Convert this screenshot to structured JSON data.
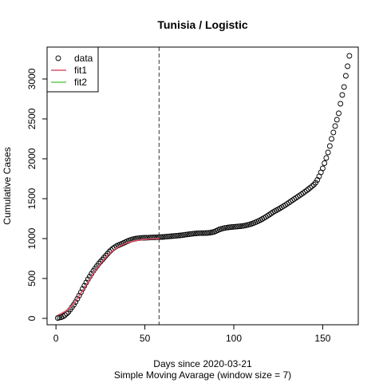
{
  "chart_data": {
    "type": "scatter",
    "title": "Tunisia / Logistic",
    "xlabel": "Days since 2020-03-21",
    "xlabel2": "Simple Moving Avarage (window size = 7)",
    "ylabel": "Cumulative Cases",
    "xlim": [
      -5,
      170
    ],
    "ylim": [
      -80,
      3400
    ],
    "xticks": [
      0,
      50,
      100,
      150
    ],
    "yticks": [
      0,
      500,
      1000,
      1500,
      2000,
      2500,
      3000
    ],
    "vline_x": 58,
    "vline_style": "dashed",
    "legend": {
      "position": "top-left",
      "entries": [
        {
          "label": "data",
          "kind": "circle",
          "color": "#000000"
        },
        {
          "label": "fit1",
          "kind": "line",
          "color": "#DF536B"
        },
        {
          "label": "fit2",
          "kind": "line",
          "color": "#61D04F"
        }
      ]
    },
    "series": [
      {
        "name": "data",
        "kind": "points",
        "color": "#000000",
        "points": [
          [
            1,
            5
          ],
          [
            2,
            10
          ],
          [
            3,
            15
          ],
          [
            4,
            25
          ],
          [
            5,
            40
          ],
          [
            6,
            60
          ],
          [
            7,
            80
          ],
          [
            8,
            110
          ],
          [
            9,
            140
          ],
          [
            10,
            170
          ],
          [
            11,
            205
          ],
          [
            12,
            245
          ],
          [
            13,
            285
          ],
          [
            14,
            325
          ],
          [
            15,
            370
          ],
          [
            16,
            410
          ],
          [
            17,
            450
          ],
          [
            18,
            490
          ],
          [
            19,
            525
          ],
          [
            20,
            560
          ],
          [
            21,
            595
          ],
          [
            22,
            625
          ],
          [
            23,
            655
          ],
          [
            24,
            685
          ],
          [
            25,
            710
          ],
          [
            26,
            735
          ],
          [
            27,
            760
          ],
          [
            28,
            785
          ],
          [
            29,
            810
          ],
          [
            30,
            835
          ],
          [
            31,
            855
          ],
          [
            32,
            875
          ],
          [
            33,
            890
          ],
          [
            34,
            905
          ],
          [
            35,
            915
          ],
          [
            36,
            925
          ],
          [
            37,
            935
          ],
          [
            38,
            945
          ],
          [
            39,
            955
          ],
          [
            40,
            965
          ],
          [
            41,
            975
          ],
          [
            42,
            983
          ],
          [
            43,
            990
          ],
          [
            44,
            995
          ],
          [
            45,
            1000
          ],
          [
            46,
            1003
          ],
          [
            47,
            1006
          ],
          [
            48,
            1008
          ],
          [
            49,
            1009
          ],
          [
            50,
            1010
          ],
          [
            51,
            1011
          ],
          [
            52,
            1012
          ],
          [
            53,
            1013
          ],
          [
            54,
            1014
          ],
          [
            55,
            1015
          ],
          [
            56,
            1016
          ],
          [
            57,
            1017
          ],
          [
            58,
            1018
          ],
          [
            59,
            1019
          ],
          [
            60,
            1020
          ],
          [
            61,
            1022
          ],
          [
            62,
            1024
          ],
          [
            63,
            1026
          ],
          [
            64,
            1028
          ],
          [
            65,
            1030
          ],
          [
            66,
            1032
          ],
          [
            67,
            1034
          ],
          [
            68,
            1036
          ],
          [
            69,
            1038
          ],
          [
            70,
            1040
          ],
          [
            71,
            1043
          ],
          [
            72,
            1046
          ],
          [
            73,
            1049
          ],
          [
            74,
            1052
          ],
          [
            75,
            1055
          ],
          [
            76,
            1058
          ],
          [
            77,
            1061
          ],
          [
            78,
            1063
          ],
          [
            79,
            1065
          ],
          [
            80,
            1067
          ],
          [
            81,
            1068
          ],
          [
            82,
            1068
          ],
          [
            83,
            1068
          ],
          [
            84,
            1069
          ],
          [
            85,
            1070
          ],
          [
            86,
            1072
          ],
          [
            87,
            1075
          ],
          [
            88,
            1080
          ],
          [
            89,
            1085
          ],
          [
            90,
            1095
          ],
          [
            91,
            1105
          ],
          [
            92,
            1115
          ],
          [
            93,
            1122
          ],
          [
            94,
            1128
          ],
          [
            95,
            1133
          ],
          [
            96,
            1137
          ],
          [
            97,
            1140
          ],
          [
            98,
            1143
          ],
          [
            99,
            1145
          ],
          [
            100,
            1147
          ],
          [
            101,
            1149
          ],
          [
            102,
            1151
          ],
          [
            103,
            1153
          ],
          [
            104,
            1155
          ],
          [
            105,
            1158
          ],
          [
            106,
            1162
          ],
          [
            107,
            1167
          ],
          [
            108,
            1172
          ],
          [
            109,
            1178
          ],
          [
            110,
            1185
          ],
          [
            111,
            1193
          ],
          [
            112,
            1202
          ],
          [
            113,
            1212
          ],
          [
            114,
            1222
          ],
          [
            115,
            1233
          ],
          [
            116,
            1245
          ],
          [
            117,
            1258
          ],
          [
            118,
            1272
          ],
          [
            119,
            1286
          ],
          [
            120,
            1300
          ],
          [
            121,
            1315
          ],
          [
            122,
            1330
          ],
          [
            123,
            1343
          ],
          [
            124,
            1355
          ],
          [
            125,
            1367
          ],
          [
            126,
            1380
          ],
          [
            127,
            1393
          ],
          [
            128,
            1407
          ],
          [
            129,
            1421
          ],
          [
            130,
            1436
          ],
          [
            131,
            1451
          ],
          [
            132,
            1466
          ],
          [
            133,
            1481
          ],
          [
            134,
            1496
          ],
          [
            135,
            1511
          ],
          [
            136,
            1526
          ],
          [
            137,
            1541
          ],
          [
            138,
            1556
          ],
          [
            139,
            1571
          ],
          [
            140,
            1587
          ],
          [
            141,
            1603
          ],
          [
            142,
            1620
          ],
          [
            143,
            1638
          ],
          [
            144,
            1656
          ],
          [
            145,
            1675
          ],
          [
            146,
            1700
          ],
          [
            147,
            1735
          ],
          [
            148,
            1780
          ],
          [
            149,
            1830
          ],
          [
            150,
            1880
          ],
          [
            151,
            1945
          ],
          [
            152,
            2010
          ],
          [
            153,
            2080
          ],
          [
            154,
            2160
          ],
          [
            155,
            2250
          ],
          [
            156,
            2330
          ],
          [
            157,
            2410
          ],
          [
            158,
            2490
          ],
          [
            159,
            2570
          ],
          [
            160,
            2690
          ],
          [
            161,
            2800
          ],
          [
            162,
            2900
          ],
          [
            163,
            3040
          ],
          [
            164,
            3160
          ],
          [
            165,
            3290
          ]
        ]
      },
      {
        "name": "fit1",
        "kind": "line",
        "color": "#DF536B",
        "points": [
          [
            1,
            40
          ],
          [
            3,
            60
          ],
          [
            5,
            85
          ],
          [
            7,
            120
          ],
          [
            9,
            165
          ],
          [
            11,
            220
          ],
          [
            13,
            285
          ],
          [
            15,
            350
          ],
          [
            17,
            420
          ],
          [
            19,
            490
          ],
          [
            21,
            560
          ],
          [
            23,
            625
          ],
          [
            25,
            685
          ],
          [
            27,
            740
          ],
          [
            29,
            790
          ],
          [
            31,
            830
          ],
          [
            33,
            865
          ],
          [
            35,
            895
          ],
          [
            37,
            918
          ],
          [
            39,
            938
          ],
          [
            41,
            953
          ],
          [
            43,
            965
          ],
          [
            45,
            975
          ],
          [
            47,
            982
          ],
          [
            49,
            988
          ],
          [
            51,
            992
          ],
          [
            53,
            995
          ],
          [
            55,
            997
          ],
          [
            57,
            999
          ],
          [
            58,
            999
          ]
        ]
      },
      {
        "name": "fit2",
        "kind": "line",
        "color": "#61D04F",
        "points": []
      }
    ]
  }
}
